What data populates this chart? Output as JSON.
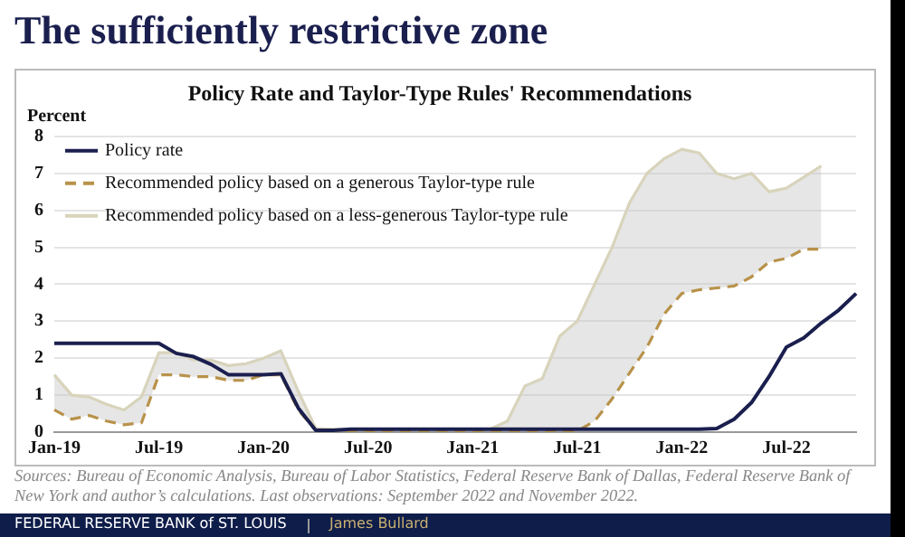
{
  "chart_data": {
    "type": "line",
    "title": "The sufficiently restrictive zone",
    "subtitle": "Policy Rate and Taylor-Type Rules' Recommendations",
    "ylabel": "Percent",
    "categories": [
      "Jan-19",
      null,
      null,
      null,
      null,
      null,
      "Jul-19",
      null,
      null,
      null,
      null,
      null,
      "Jan-20",
      null,
      null,
      null,
      null,
      null,
      "Jul-20",
      null,
      null,
      null,
      null,
      null,
      "Jan-21",
      null,
      null,
      null,
      null,
      null,
      "Jul-21",
      null,
      null,
      null,
      null,
      null,
      "Jan-22",
      null,
      null,
      null,
      null,
      null,
      "Jul-22",
      null,
      null,
      null,
      null
    ],
    "series": [
      {
        "name": "Policy rate",
        "color": "#1a1f4e",
        "line_style": "solid",
        "values": [
          2.4,
          2.4,
          2.4,
          2.4,
          2.4,
          2.4,
          2.4,
          2.13,
          2.04,
          1.83,
          1.55,
          1.55,
          1.55,
          1.58,
          0.65,
          0.05,
          0.05,
          0.08,
          0.08,
          0.08,
          0.08,
          0.08,
          0.08,
          0.08,
          0.08,
          0.08,
          0.08,
          0.08,
          0.08,
          0.08,
          0.08,
          0.08,
          0.08,
          0.08,
          0.08,
          0.08,
          0.08,
          0.08,
          0.1,
          0.35,
          0.8,
          1.5,
          2.3,
          2.55,
          2.95,
          3.3,
          3.75
        ]
      },
      {
        "name": "Recommended policy based on a generous Taylor-type rule",
        "color": "#b8924a",
        "line_style": "dashed",
        "values": [
          0.6,
          0.35,
          0.45,
          0.3,
          0.2,
          0.25,
          1.55,
          1.55,
          1.5,
          1.5,
          1.4,
          1.4,
          1.55,
          1.55,
          0.6,
          0.05,
          0.03,
          0.03,
          0.03,
          0.03,
          0.03,
          0.03,
          0.03,
          0.03,
          0.03,
          0.03,
          0.03,
          0.03,
          0.03,
          0.03,
          0.03,
          0.3,
          0.9,
          1.6,
          2.3,
          3.2,
          3.75,
          3.85,
          3.9,
          3.95,
          4.2,
          4.6,
          4.7,
          4.95,
          4.95,
          null,
          null
        ]
      },
      {
        "name": "Recommended policy based on a less-generous Taylor-type rule",
        "color": "#d8d4bc",
        "line_style": "solid",
        "values": [
          1.55,
          1.0,
          0.95,
          0.75,
          0.6,
          0.95,
          2.15,
          2.15,
          1.95,
          1.95,
          1.8,
          1.85,
          2.0,
          2.2,
          1.1,
          0.1,
          0.08,
          0.08,
          0.08,
          0.08,
          0.08,
          0.08,
          0.08,
          0.08,
          0.08,
          0.08,
          0.3,
          1.25,
          1.45,
          2.6,
          3.0,
          4.0,
          5.0,
          6.2,
          7.0,
          7.4,
          7.65,
          7.55,
          7.0,
          6.85,
          7.0,
          6.5,
          6.6,
          6.9,
          7.2,
          null,
          null
        ],
        "lower": [
          0.6,
          0.35,
          0.45,
          0.3,
          0.2,
          0.25,
          1.55,
          1.55,
          1.5,
          1.5,
          1.4,
          1.4,
          1.55,
          1.55,
          0.6,
          0.05,
          0.03,
          0.03,
          0.03,
          0.03,
          0.03,
          0.03,
          0.03,
          0.03,
          0.03,
          0.03,
          0.03,
          0.03,
          0.03,
          0.03,
          0.03,
          0.3,
          0.9,
          1.6,
          2.3,
          3.2,
          3.75,
          3.85,
          3.9,
          3.95,
          4.2,
          4.6,
          4.7,
          4.95,
          4.95,
          null,
          null
        ],
        "upper": [
          1.55,
          1.0,
          0.95,
          0.75,
          0.6,
          0.95,
          2.15,
          2.15,
          1.95,
          1.95,
          1.8,
          1.85,
          2.0,
          2.2,
          1.1,
          0.1,
          0.08,
          0.08,
          0.08,
          0.08,
          0.08,
          0.08,
          0.08,
          0.08,
          0.08,
          0.08,
          0.3,
          1.25,
          1.45,
          2.6,
          3.0,
          4.0,
          5.0,
          6.2,
          7.0,
          7.4,
          7.65,
          7.55,
          7.0,
          6.85,
          7.0,
          6.5,
          6.6,
          6.9,
          7.2,
          null,
          null
        ]
      }
    ],
    "ylim": [
      0,
      8
    ],
    "yticks": [
      0,
      1,
      2,
      3,
      4,
      5,
      6,
      7,
      8
    ],
    "grid": "y",
    "legend": "top left",
    "marker": "none",
    "annotations": [
      "Sources: Bureau of Economic Analysis, Bureau of Labor Statistics, Federal Reserve Bank of Dallas, Federal Reserve Bank of New York and author’s calculations. Last observations: September 2022 and November 2022.",
      "FEDERAL RESERVE BANK of ST. LOUIS",
      "James Bullard"
    ]
  }
}
